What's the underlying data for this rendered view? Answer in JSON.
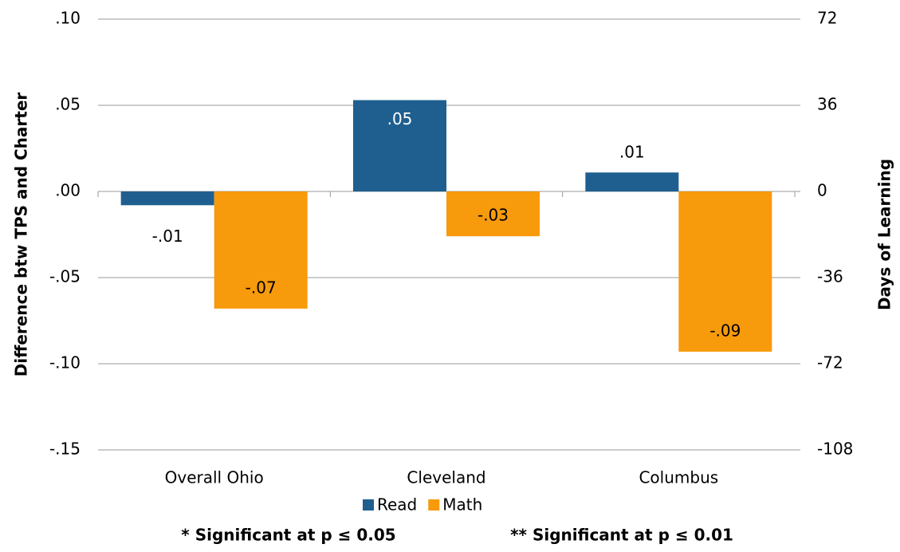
{
  "chart_data": {
    "type": "bar",
    "categories": [
      "Overall Ohio",
      "Cleveland",
      "Columbus"
    ],
    "series": [
      {
        "name": "Read",
        "color": "#1f5f8f",
        "values": [
          -0.008,
          0.053,
          0.011
        ],
        "value_labels": [
          "-.01",
          ".05",
          ".01"
        ]
      },
      {
        "name": "Math",
        "color": "#f79a0c",
        "values": [
          -0.068,
          -0.026,
          -0.093
        ],
        "value_labels": [
          "-.07",
          "-.03",
          "-.09"
        ]
      }
    ],
    "ylim": [
      -0.15,
      0.1
    ],
    "yticks": [
      {
        "value": 0.1,
        "label": ".10"
      },
      {
        "value": 0.05,
        "label": ".05"
      },
      {
        "value": 0,
        "label": ".00"
      },
      {
        "value": -0.05,
        "label": "-.05"
      },
      {
        "value": -0.1,
        "label": "-.10"
      },
      {
        "value": -0.15,
        "label": "-.15"
      }
    ],
    "y2lim": [
      -108,
      72
    ],
    "y2ticks": [
      72,
      36,
      0,
      -36,
      -72,
      -108
    ],
    "ylabel": "Difference btw TPS and Charter",
    "y2label": "Days of Learning",
    "footnotes": [
      "* Significant at p ≤ 0.05",
      "** Significant at p ≤ 0.01"
    ],
    "grid": true,
    "legend": "bottom"
  }
}
